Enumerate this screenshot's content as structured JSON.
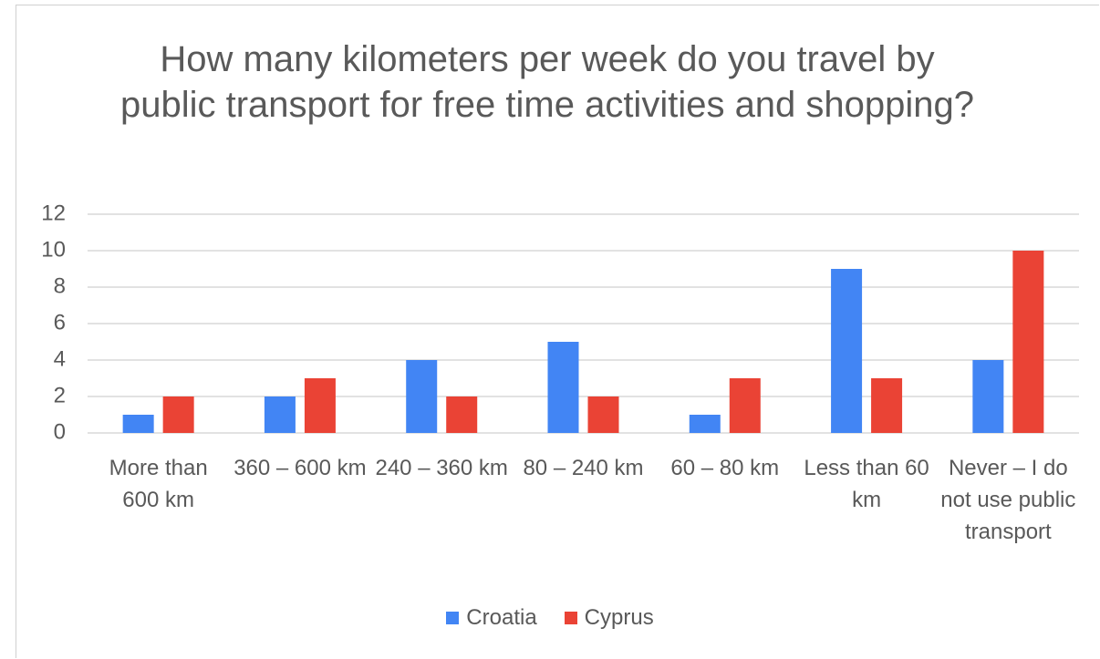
{
  "chart_data": {
    "type": "bar",
    "title": "How many kilometers per week do you travel by public transport for free time activities and shopping?",
    "categories": [
      "More than 600 km",
      "360 – 600 km",
      "240 – 360 km",
      "80 – 240 km",
      "60 – 80 km",
      "Less than 60 km",
      "Never – I do not use public transport"
    ],
    "series": [
      {
        "name": "Croatia",
        "color": "#4285f4",
        "values": [
          1,
          2,
          4,
          5,
          1,
          9,
          4
        ]
      },
      {
        "name": "Cyprus",
        "color": "#ea4335",
        "values": [
          2,
          3,
          2,
          2,
          3,
          3,
          10
        ]
      }
    ],
    "ylim": [
      0,
      12
    ],
    "yticks": [
      0,
      2,
      4,
      6,
      8,
      10,
      12
    ],
    "grid": true,
    "legend": "bottom"
  }
}
